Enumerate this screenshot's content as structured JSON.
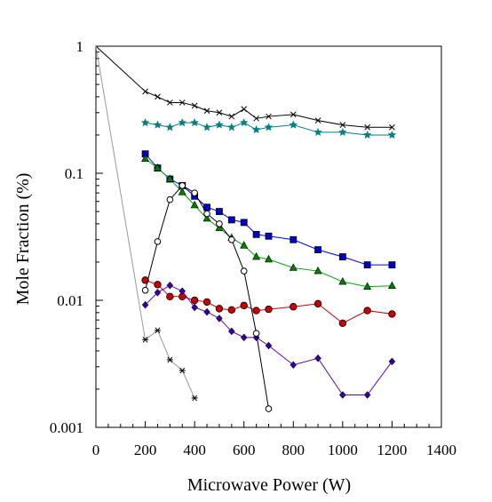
{
  "chart_data": {
    "type": "line",
    "xlabel": "Microwave Power (W)",
    "ylabel": "Mole Fraction (%)",
    "xlim": [
      0,
      1400
    ],
    "ylim": [
      0.001,
      1
    ],
    "yscale": "log",
    "xticks": [
      0,
      200,
      400,
      600,
      800,
      1000,
      1200,
      1400
    ],
    "xtick_labels": [
      "0",
      "200",
      "400",
      "600",
      "800",
      "1000",
      "1200",
      "1400"
    ],
    "yticks": [
      1,
      0.1,
      0.01,
      0.001
    ],
    "ytick_labels": [
      "1",
      "0.1",
      "0.01",
      "0.001"
    ],
    "grid": false,
    "legend": "none",
    "series": [
      {
        "marker": "x",
        "color": "#000000",
        "line_color": "#000000",
        "fill": "#000000",
        "x": [
          0,
          200,
          250,
          300,
          350,
          400,
          450,
          500,
          550,
          600,
          650,
          700,
          800,
          900,
          1000,
          1100,
          1200
        ],
        "y": [
          1.0,
          0.44,
          0.4,
          0.36,
          0.36,
          0.34,
          0.31,
          0.3,
          0.28,
          0.32,
          0.27,
          0.28,
          0.29,
          0.26,
          0.24,
          0.23,
          0.23
        ]
      },
      {
        "marker": "star",
        "color": "#008080",
        "line_color": "#008080",
        "fill": "#008080",
        "x": [
          200,
          250,
          300,
          350,
          400,
          450,
          500,
          550,
          600,
          650,
          700,
          800,
          900,
          1000,
          1100,
          1200
        ],
        "y": [
          0.25,
          0.24,
          0.23,
          0.25,
          0.25,
          0.23,
          0.24,
          0.23,
          0.25,
          0.22,
          0.23,
          0.24,
          0.21,
          0.21,
          0.2,
          0.2
        ]
      },
      {
        "marker": "square",
        "color": "#0000cc",
        "line_color": "#0000ff",
        "fill": "#0000cc",
        "x": [
          200,
          250,
          300,
          350,
          400,
          450,
          500,
          550,
          600,
          650,
          700,
          800,
          900,
          1000,
          1100,
          1200
        ],
        "y": [
          0.142,
          0.11,
          0.09,
          0.08,
          0.066,
          0.054,
          0.05,
          0.043,
          0.041,
          0.033,
          0.032,
          0.03,
          0.025,
          0.022,
          0.019,
          0.019
        ]
      },
      {
        "marker": "triangle",
        "color": "#008000",
        "line_color": "#00aa00",
        "fill": "#008000",
        "x": [
          200,
          250,
          300,
          350,
          400,
          450,
          500,
          550,
          600,
          650,
          700,
          800,
          900,
          1000,
          1100,
          1200
        ],
        "y": [
          0.13,
          0.11,
          0.09,
          0.071,
          0.056,
          0.044,
          0.037,
          0.031,
          0.027,
          0.022,
          0.021,
          0.018,
          0.017,
          0.014,
          0.0128,
          0.013
        ]
      },
      {
        "marker": "circle",
        "color": "#cc0000",
        "line_color": "#cc0000",
        "fill": "#cc0000",
        "x": [
          200,
          250,
          300,
          350,
          400,
          450,
          500,
          550,
          600,
          650,
          700,
          800,
          900,
          1000,
          1100,
          1200
        ],
        "y": [
          0.0144,
          0.0133,
          0.0107,
          0.0107,
          0.01,
          0.0097,
          0.0086,
          0.0084,
          0.0091,
          0.0083,
          0.0085,
          0.0089,
          0.0094,
          0.0066,
          0.0083,
          0.0078
        ]
      },
      {
        "marker": "diamond",
        "color": "#330099",
        "line_color": "#6600aa",
        "fill": "#330099",
        "x": [
          200,
          250,
          300,
          350,
          400,
          450,
          500,
          550,
          600,
          650,
          700,
          800,
          900,
          1000,
          1100,
          1200
        ],
        "y": [
          0.0092,
          0.0115,
          0.0131,
          0.0118,
          0.0088,
          0.0081,
          0.0072,
          0.0057,
          0.0051,
          0.0051,
          0.0044,
          0.0031,
          0.0035,
          0.0018,
          0.0018,
          0.0033
        ]
      },
      {
        "marker": "open-circle",
        "color": "#000000",
        "line_color": "#000000",
        "fill": "#ffffff",
        "x": [
          200,
          250,
          300,
          350,
          400,
          450,
          500,
          550,
          600,
          650,
          700
        ],
        "y": [
          0.012,
          0.029,
          0.062,
          0.08,
          0.07,
          0.048,
          0.04,
          0.03,
          0.017,
          0.0055,
          0.0014
        ]
      },
      {
        "marker": "asterisk",
        "color": "#000000",
        "line_color": "#999999",
        "fill": "#000000",
        "x": [
          0,
          200,
          250,
          300,
          350,
          400
        ],
        "y": [
          1.0,
          0.0049,
          0.0058,
          0.0034,
          0.0028,
          0.0017
        ]
      }
    ]
  }
}
